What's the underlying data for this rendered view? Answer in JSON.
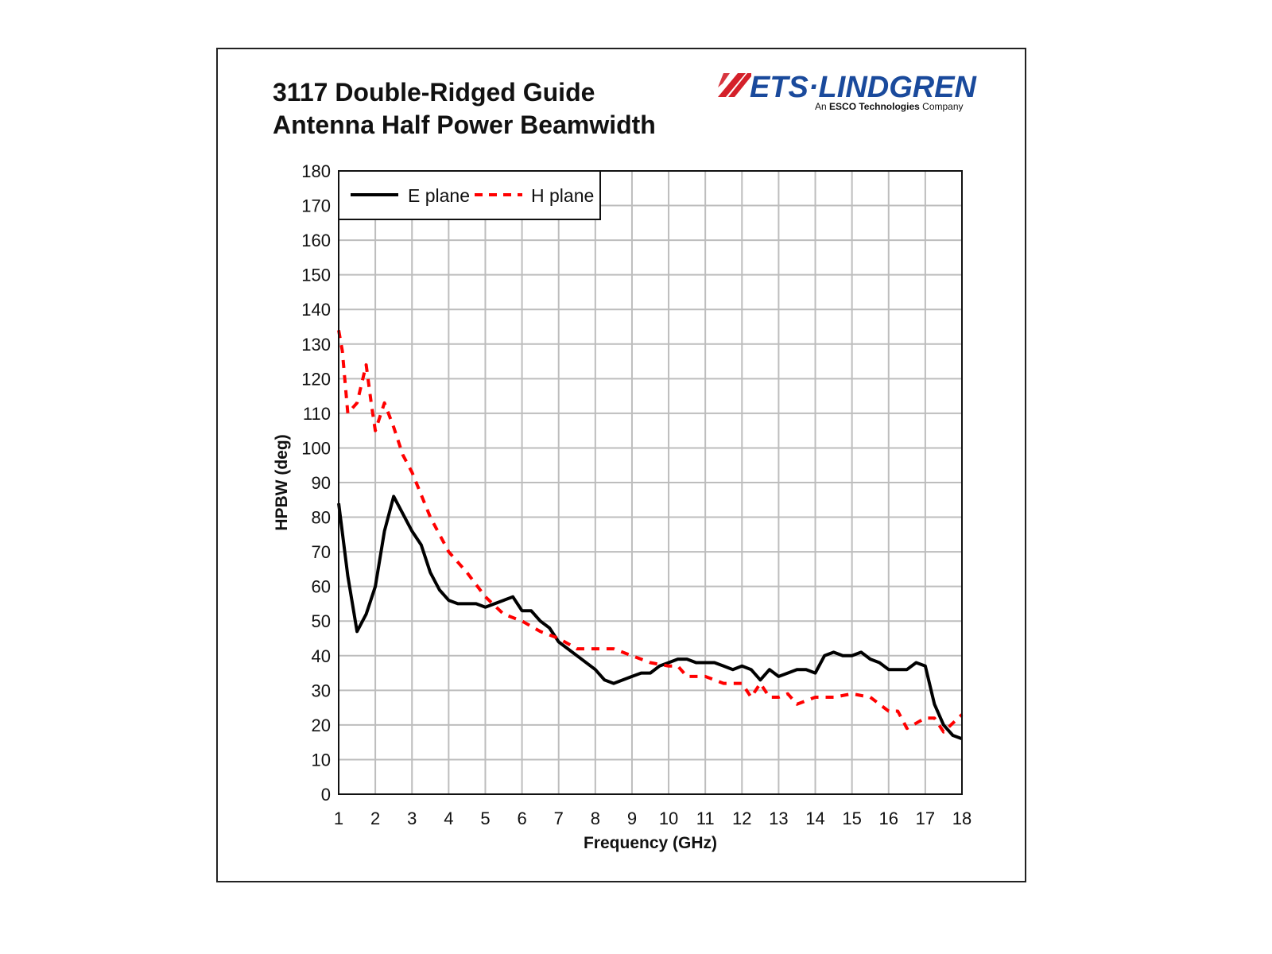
{
  "chart_data": {
    "type": "line",
    "title": [
      "3117 Double-Ridged Guide",
      "Antenna Half Power Beamwidth"
    ],
    "xlabel": "Frequency (GHz)",
    "ylabel": "HPBW (deg)",
    "xlim": [
      1,
      18
    ],
    "ylim": [
      0,
      180
    ],
    "xticks": [
      "1",
      "2",
      "3",
      "4",
      "5",
      "6",
      "7",
      "8",
      "9",
      "10",
      "11",
      "12",
      "13",
      "14",
      "15",
      "16",
      "17",
      "18"
    ],
    "yticks": [
      "0",
      "10",
      "20",
      "30",
      "40",
      "50",
      "60",
      "70",
      "80",
      "90",
      "100",
      "110",
      "120",
      "130",
      "140",
      "150",
      "160",
      "170",
      "180"
    ],
    "grid": true,
    "legend_position": "top-left",
    "series": [
      {
        "name": "E plane",
        "color": "#000000",
        "style": "solid",
        "x": [
          1,
          1.25,
          1.5,
          1.75,
          2,
          2.25,
          2.5,
          2.75,
          3,
          3.25,
          3.5,
          3.75,
          4,
          4.25,
          4.5,
          4.75,
          5,
          5.5,
          5.75,
          6,
          6.25,
          6.5,
          6.75,
          7,
          7.5,
          8,
          8.25,
          8.5,
          9,
          9.25,
          9.5,
          9.75,
          10,
          10.25,
          10.5,
          10.75,
          11,
          11.25,
          11.5,
          11.75,
          12,
          12.25,
          12.5,
          12.75,
          13,
          13.25,
          13.5,
          13.75,
          14,
          14.25,
          14.5,
          14.75,
          15,
          15.25,
          15.5,
          15.75,
          16,
          16.5,
          16.75,
          17,
          17.25,
          17.5,
          17.75,
          18
        ],
        "y": [
          84,
          63,
          47,
          52,
          60,
          76,
          86,
          81,
          76,
          72,
          64,
          59,
          56,
          55,
          55,
          55,
          54,
          56,
          57,
          53,
          53,
          50,
          48,
          44,
          40,
          36,
          33,
          32,
          34,
          35,
          35,
          37,
          38,
          39,
          39,
          38,
          38,
          38,
          37,
          36,
          37,
          36,
          33,
          36,
          34,
          35,
          36,
          36,
          35,
          40,
          41,
          40,
          40,
          41,
          39,
          38,
          36,
          36,
          38,
          37,
          26,
          20,
          17,
          16
        ]
      },
      {
        "name": "H plane",
        "color": "#ff0000",
        "style": "dashed",
        "x": [
          1,
          1.1,
          1.25,
          1.5,
          1.75,
          1.9,
          2,
          2.25,
          2.5,
          2.75,
          3,
          3.5,
          4,
          4.5,
          5,
          5.5,
          6,
          6.5,
          7,
          7.5,
          8,
          8.5,
          9,
          9.5,
          10,
          10.25,
          10.5,
          11,
          11.5,
          12,
          12.25,
          12.5,
          12.75,
          13,
          13.25,
          13.5,
          14,
          14.5,
          15,
          15.5,
          16,
          16.25,
          16.5,
          17,
          17.25,
          17.5,
          18
        ],
        "y": [
          134,
          128,
          110,
          113,
          124,
          112,
          105,
          113,
          106,
          98,
          93,
          80,
          70,
          64,
          57,
          52,
          50,
          47,
          45,
          42,
          42,
          42,
          40,
          38,
          37,
          37,
          34,
          34,
          32,
          32,
          28,
          32,
          28,
          28,
          29,
          26,
          28,
          28,
          29,
          28,
          24,
          24,
          19,
          22,
          22,
          18,
          23
        ]
      }
    ]
  },
  "logo": {
    "brand": "ETS·LINDGREN",
    "tagline": "An ESCO Technologies Company",
    "brand_color": "#1a4a9c",
    "accent_color": "#d4202a"
  }
}
